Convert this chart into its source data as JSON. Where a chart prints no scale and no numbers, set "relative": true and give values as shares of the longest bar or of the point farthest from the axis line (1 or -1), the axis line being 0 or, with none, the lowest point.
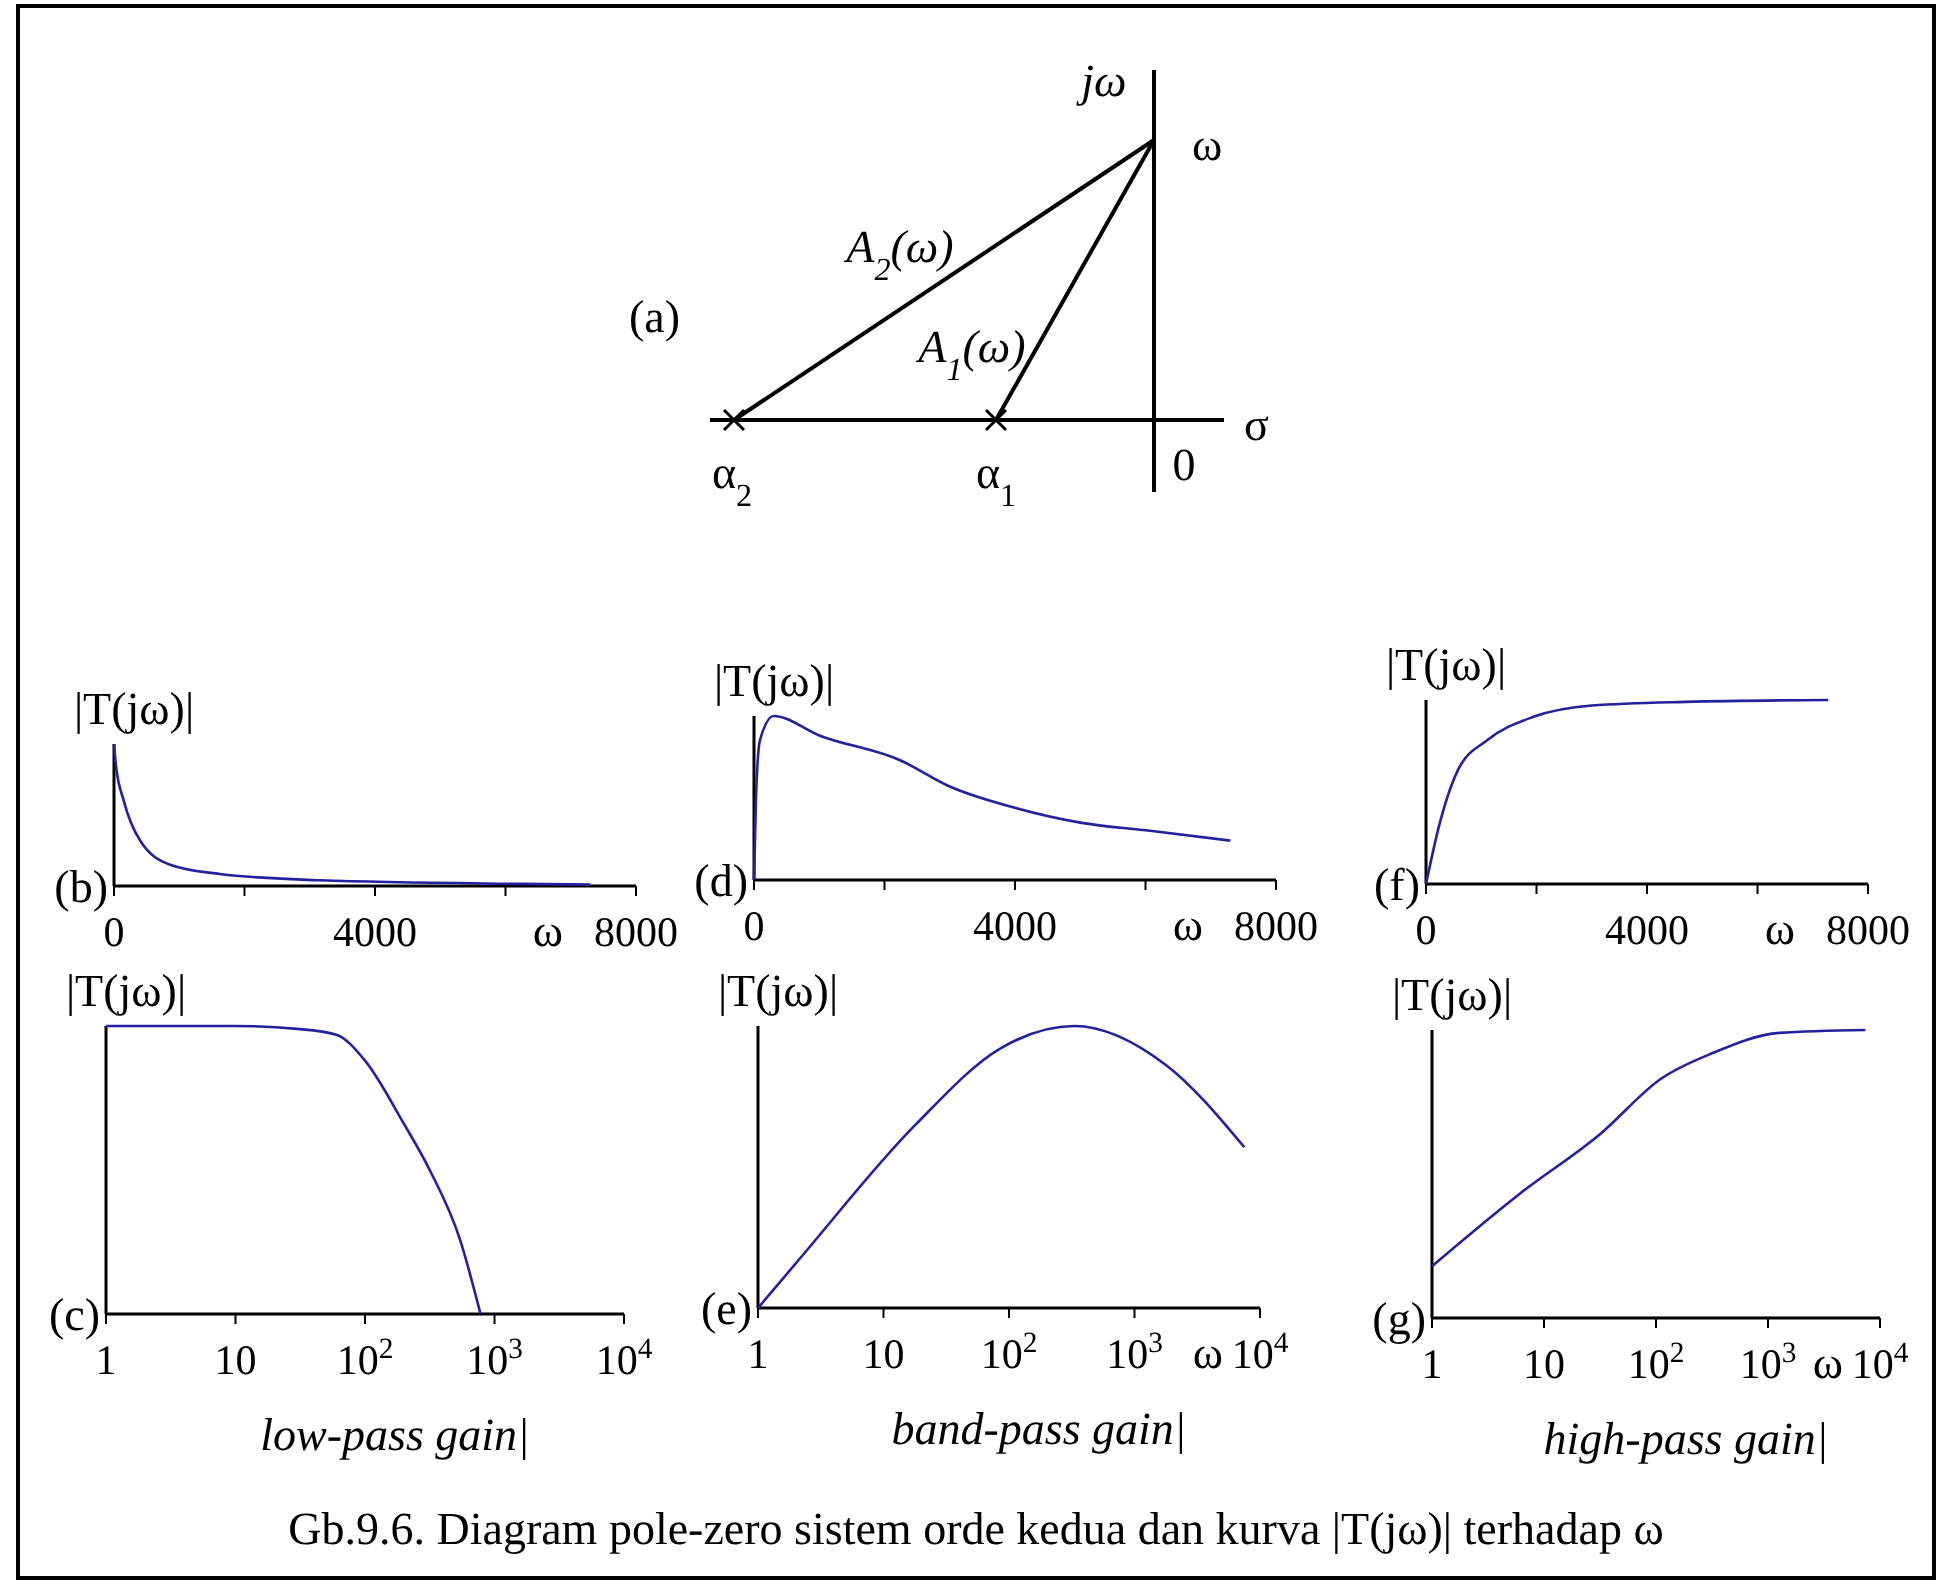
{
  "chart_data": [
    {
      "type": "other",
      "title": "(a)",
      "annotations": [
        "jω",
        "ω",
        "σ",
        "0",
        "α$_{2}$",
        "α$_{1}$",
        "A$_{2}$(ω)",
        "A$_{1}$(ω)",
        "Gb.9.6. Diagram pole-zero sistem orde kedua dan kurva |T(jω)| terhadap ω"
      ]
    },
    {
      "type": "line",
      "title": "(b)",
      "ylabel": "|T(jω)|",
      "xlabel": "ω",
      "relative": true,
      "color": "#2222a0",
      "x": [
        0,
        30,
        150,
        400,
        860,
        1620,
        3150,
        6220,
        7300
      ],
      "values": [
        1,
        0.85,
        0.6,
        0.32,
        0.15,
        0.085,
        0.04,
        0.015,
        0.01
      ],
      "xlim": [
        0,
        8000
      ],
      "xticks": [
        0,
        {
          "value": 2000,
          "label": null
        },
        4000,
        {
          "value": 6000,
          "label": null
        },
        8000
      ]
    },
    {
      "type": "line",
      "title": "(d)",
      "ylabel": "|T(jω)|",
      "xlabel": "ω",
      "relative": true,
      "color": "#2222a0",
      "x": [
        0,
        30,
        90,
        300,
        1010,
        2240,
        3000,
        4000,
        5000,
        6070,
        7300
      ],
      "values": [
        0,
        0.49,
        0.85,
        1,
        0.88,
        0.73,
        0.57,
        0.44,
        0.35,
        0.3,
        0.24
      ],
      "xlim": [
        0,
        8000
      ],
      "xticks": [
        0,
        {
          "value": 2000,
          "label": null
        },
        4000,
        {
          "value": 6000,
          "label": null
        },
        8000
      ]
    },
    {
      "type": "line",
      "title": "(f)",
      "ylabel": "|T(jω)|",
      "xlabel": "ω",
      "relative": true,
      "color": "#2222a0",
      "x": [
        0,
        240,
        580,
        1100,
        1960,
        3000,
        4700,
        7280
      ],
      "values": [
        0,
        0.32,
        0.62,
        0.78,
        0.91,
        0.97,
        0.99,
        1
      ],
      "xlim": [
        0,
        8000
      ],
      "xticks": [
        0,
        {
          "value": 2000,
          "label": null
        },
        4000,
        {
          "value": 6000,
          "label": null
        },
        8000
      ]
    },
    {
      "type": "line",
      "title": "(c)",
      "ylabel": "|T(jω)|",
      "relative": true,
      "log": "x",
      "color": "#2222a0",
      "annotations": [
        "low-pass gain|"
      ],
      "x": [
        1,
        10,
        30,
        60,
        100,
        200,
        316,
        540,
        780
      ],
      "values": [
        1,
        1,
        0.99,
        0.97,
        0.88,
        0.66,
        0.5,
        0.26,
        0
      ],
      "xlim": [
        1,
        10000
      ],
      "xticks": [
        1,
        10,
        {
          "value": 100,
          "label": "10$^{2}$"
        },
        {
          "value": 1000,
          "label": "10$^{3}$"
        },
        {
          "value": 10000,
          "label": "10$^{4}$"
        }
      ]
    },
    {
      "type": "line",
      "title": "(e)",
      "ylabel": "|T(jω)|",
      "xlabel": "ω",
      "relative": true,
      "log": "x",
      "color": "#2222a0",
      "annotations": [
        "band-pass gain|"
      ],
      "x": [
        1,
        2.2,
        18,
        85,
        330,
        1800,
        7500
      ],
      "values": [
        0,
        0.18,
        0.65,
        0.92,
        1,
        0.86,
        0.57
      ],
      "xlim": [
        1,
        10000
      ],
      "xticks": [
        1,
        10,
        {
          "value": 100,
          "label": "10$^{2}$"
        },
        {
          "value": 1000,
          "label": "10$^{3}$"
        },
        {
          "value": 10000,
          "label": "10$^{4}$"
        }
      ]
    },
    {
      "type": "line",
      "title": "(g)",
      "ylabel": "|T(jω)|",
      "xlabel": "ω",
      "relative": true,
      "log": "x",
      "color": "#2222a0",
      "annotations": [
        "high-pass gain|"
      ],
      "x": [
        1,
        6,
        32,
        110,
        320,
        1260,
        7400
      ],
      "values": [
        0.18,
        0.43,
        0.64,
        0.83,
        0.92,
        0.99,
        1
      ],
      "xlim": [
        1,
        10000
      ],
      "xticks": [
        1,
        10,
        {
          "value": 100,
          "label": "10$^{2}$"
        },
        {
          "value": 1000,
          "label": "10$^{3}$"
        },
        {
          "value": 10000,
          "label": "10$^{4}$"
        }
      ]
    }
  ]
}
